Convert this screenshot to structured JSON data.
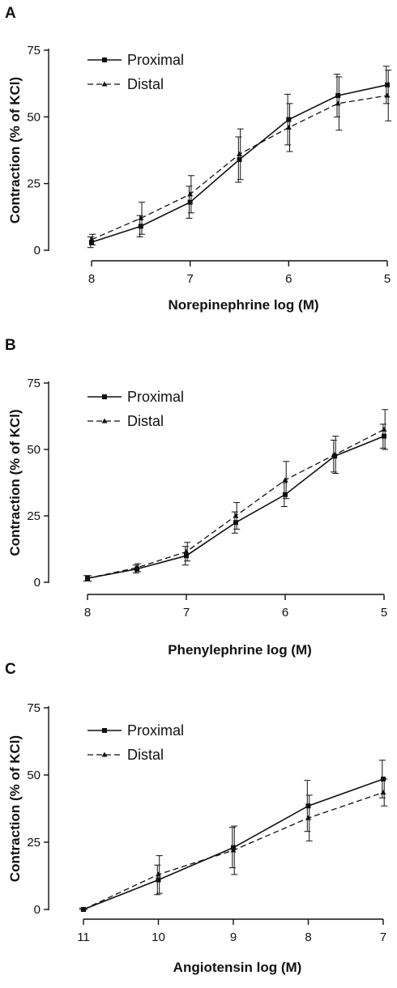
{
  "chart_data": [
    {
      "panel": "A",
      "type": "line",
      "xlabel": "Norepinephrine log (M)",
      "ylabel": "Contraction (% of KCl)",
      "x": [
        8,
        7.5,
        7,
        6.5,
        6,
        5.5,
        5
      ],
      "x_ticks": [
        8,
        7,
        6,
        5
      ],
      "y_ticks": [
        0,
        25,
        50,
        75
      ],
      "xlim": [
        8,
        5
      ],
      "ylim": [
        0,
        75
      ],
      "error_bars": true,
      "legend_position": "top-left",
      "series": [
        {
          "name": "Proximal",
          "style": "solid",
          "marker": "square",
          "values": [
            3,
            9,
            18,
            34,
            49,
            58,
            62
          ],
          "errors": [
            2,
            4,
            6,
            8.5,
            9.5,
            8,
            7
          ]
        },
        {
          "name": "Distal",
          "style": "dashed",
          "marker": "triangle",
          "values": [
            4,
            12,
            21,
            36,
            46,
            55,
            58
          ],
          "errors": [
            2,
            6,
            7,
            9.5,
            9,
            10,
            9.5
          ]
        }
      ]
    },
    {
      "panel": "B",
      "type": "line",
      "xlabel": "Phenylephrine log (M)",
      "ylabel": "Contraction (% of KCl)",
      "x": [
        8,
        7.5,
        7,
        6.5,
        6,
        5.5,
        5
      ],
      "x_ticks": [
        8,
        7,
        6,
        5
      ],
      "y_ticks": [
        0,
        25,
        50,
        75
      ],
      "xlim": [
        8,
        5
      ],
      "ylim": [
        0,
        75
      ],
      "error_bars": true,
      "legend_position": "top-left",
      "series": [
        {
          "name": "Proximal",
          "style": "solid",
          "marker": "square",
          "values": [
            1.5,
            5,
            10,
            22.5,
            33,
            47.5,
            55
          ],
          "errors": [
            1,
            1.5,
            3.5,
            4,
            4.5,
            6,
            4.5
          ]
        },
        {
          "name": "Distal",
          "style": "dashed",
          "marker": "triangle",
          "values": [
            1.5,
            5.5,
            11.5,
            25,
            38.5,
            48,
            57.5
          ],
          "errors": [
            1,
            1.5,
            3.5,
            5,
            7,
            7,
            7.5
          ]
        }
      ]
    },
    {
      "panel": "C",
      "type": "line",
      "xlabel": "Angiotensin log (M)",
      "ylabel": "Contraction (% of KCl)",
      "x": [
        11,
        10,
        9,
        8,
        7
      ],
      "x_ticks": [
        11,
        10,
        9,
        8,
        7
      ],
      "y_ticks": [
        0,
        25,
        50,
        75
      ],
      "xlim": [
        11,
        7
      ],
      "ylim": [
        0,
        75
      ],
      "error_bars": true,
      "legend_position": "top-left",
      "series": [
        {
          "name": "Proximal",
          "style": "solid",
          "marker": "square",
          "values": [
            0,
            11,
            23,
            38.5,
            48.5
          ],
          "errors": [
            0.5,
            5.5,
            7.5,
            9.5,
            7
          ]
        },
        {
          "name": "Distal",
          "style": "dashed",
          "marker": "triangle",
          "values": [
            0,
            13,
            22,
            34,
            43.5
          ],
          "errors": [
            0.5,
            7,
            9,
            8.5,
            5
          ]
        }
      ]
    }
  ]
}
